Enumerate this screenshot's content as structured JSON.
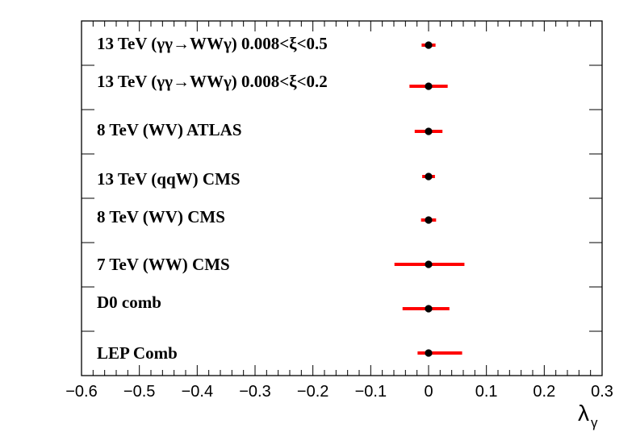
{
  "chart_data": {
    "type": "scatter",
    "title": "",
    "xlabel": "λ",
    "xlabel_subscript": "γ",
    "ylabel": "",
    "xlim": [
      -0.6,
      0.3
    ],
    "x_ticks": [
      -0.6,
      -0.5,
      -0.4,
      -0.3,
      -0.2,
      -0.1,
      0,
      0.1,
      0.2,
      0.3
    ],
    "x_tick_labels": [
      "−0.6",
      "−0.5",
      "−0.4",
      "−0.3",
      "−0.2",
      "−0.1",
      "0",
      "0.1",
      "0.2",
      "0.3"
    ],
    "grid": false,
    "marker_color": "#000000",
    "errorbar_color": "#ff0000",
    "points": [
      {
        "label": "13 TeV (γγ→WWγ) 0.008<ξ<0.5",
        "value": 0.0,
        "low": -0.012,
        "high": 0.012
      },
      {
        "label": "13 TeV (γγ→WWγ) 0.008<ξ<0.2",
        "value": 0.0,
        "low": -0.033,
        "high": 0.033
      },
      {
        "label": "8 TeV (WV) ATLAS",
        "value": 0.0,
        "low": -0.024,
        "high": 0.024
      },
      {
        "label": "13 TeV (qqW) CMS",
        "value": 0.0,
        "low": -0.011,
        "high": 0.011
      },
      {
        "label": "8 TeV (WV) CMS",
        "value": 0.0,
        "low": -0.013,
        "high": 0.013
      },
      {
        "label": "7 TeV (WW) CMS",
        "value": 0.0,
        "low": -0.059,
        "high": 0.062
      },
      {
        "label": "D0 comb",
        "value": 0.0,
        "low": -0.045,
        "high": 0.036
      },
      {
        "label": "LEP Comb",
        "value": 0.0,
        "low": -0.019,
        "high": 0.058
      }
    ]
  }
}
